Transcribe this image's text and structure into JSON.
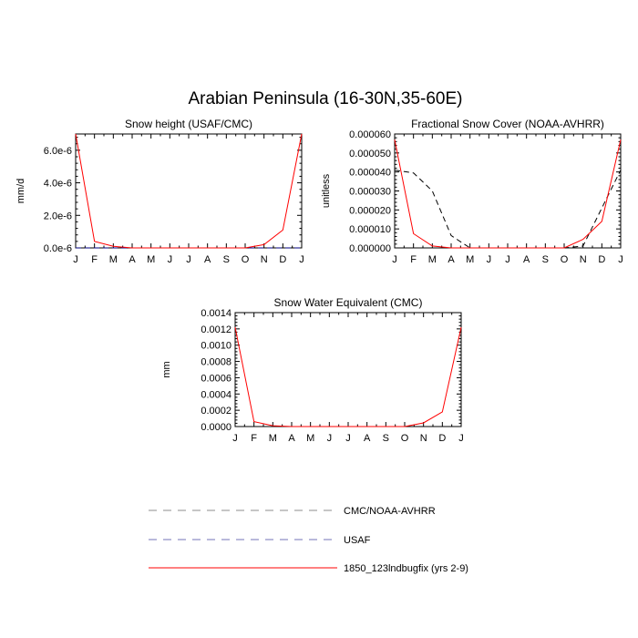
{
  "title": "Arabian Peninsula (16-30N,35-60E)",
  "legend": [
    {
      "label": "CMC/NOAA-AVHRR",
      "color": "#000000",
      "dash": "9,7",
      "opacity": 0.45
    },
    {
      "label": "USAF",
      "color": "#000080",
      "dash": "9,7",
      "opacity": 0.55
    },
    {
      "label": "1850_123lndbugfix (yrs 2-9)",
      "color": "#ff0000",
      "dash": "",
      "opacity": 1
    }
  ],
  "chart_data": [
    {
      "type": "line",
      "title": "Snow height (USAF/CMC)",
      "ylabel": "mm/d",
      "categories": [
        "J",
        "F",
        "M",
        "A",
        "M",
        "J",
        "J",
        "A",
        "S",
        "O",
        "N",
        "D",
        "J"
      ],
      "ylim": [
        0,
        7e-06
      ],
      "yticks": [
        0,
        2e-06,
        4e-06,
        6e-06
      ],
      "ytick_labels": [
        "0.0e-6",
        "2.0e-6",
        "4.0e-6",
        "6.0e-6"
      ],
      "series": [
        {
          "name": "1850_123lndbugfix (yrs 2-9)",
          "color": "#ff0000",
          "dash": "",
          "values": [
            7e-06,
            4e-07,
            1e-07,
            0,
            0,
            0,
            0,
            0,
            0,
            0,
            2e-07,
            1.1e-06,
            7e-06
          ]
        },
        {
          "name": "USAF",
          "color": "#000080",
          "dash": "6,4",
          "values": [
            0,
            0,
            0,
            0,
            0,
            0,
            0,
            0,
            0,
            0,
            0,
            0,
            0
          ]
        }
      ]
    },
    {
      "type": "line",
      "title": "Fractional Snow Cover (NOAA-AVHRR)",
      "ylabel": "unitless",
      "categories": [
        "J",
        "F",
        "M",
        "A",
        "M",
        "J",
        "J",
        "A",
        "S",
        "O",
        "N",
        "D",
        "J"
      ],
      "ylim": [
        0,
        6e-05
      ],
      "yticks": [
        0,
        1e-05,
        2e-05,
        3e-05,
        4e-05,
        5e-05,
        6e-05
      ],
      "ytick_labels": [
        "0.000000",
        "0.000010",
        "0.000020",
        "0.000030",
        "0.000040",
        "0.000050",
        "0.000060"
      ],
      "series": [
        {
          "name": "1850_123lndbugfix (yrs 2-9)",
          "color": "#ff0000",
          "dash": "",
          "values": [
            5.7e-05,
            7.5e-06,
            1e-06,
            0,
            0,
            0,
            0,
            0,
            0,
            0,
            4.5e-06,
            1.4e-05,
            5.7e-05
          ]
        },
        {
          "name": "CMC/NOAA-AVHRR",
          "color": "#000000",
          "dash": "6,4",
          "values": [
            4.1e-05,
            3.95e-05,
            3e-05,
            6.5e-06,
            0,
            0,
            0,
            0,
            0,
            0,
            1e-06,
            2.1e-05,
            4.1e-05
          ]
        }
      ]
    },
    {
      "type": "line",
      "title": "Snow Water Equivalent (CMC)",
      "ylabel": "mm",
      "categories": [
        "J",
        "F",
        "M",
        "A",
        "M",
        "J",
        "J",
        "A",
        "S",
        "O",
        "N",
        "D",
        "J"
      ],
      "ylim": [
        0,
        0.0014
      ],
      "yticks": [
        0,
        0.0002,
        0.0004,
        0.0006,
        0.0008,
        0.001,
        0.0012,
        0.0014
      ],
      "ytick_labels": [
        "0.0000",
        "0.0002",
        "0.0004",
        "0.0006",
        "0.0008",
        "0.0010",
        "0.0012",
        "0.0014"
      ],
      "series": [
        {
          "name": "1850_123lndbugfix (yrs 2-9)",
          "color": "#ff0000",
          "dash": "",
          "values": [
            0.00122,
            6e-05,
            1e-05,
            0,
            0,
            0,
            0,
            0,
            0,
            0,
            4.5e-05,
            0.00018,
            0.00122
          ]
        },
        {
          "name": "CMC/NOAA-AVHRR",
          "color": "#000000",
          "dash": "6,4",
          "values": [
            0,
            0,
            0,
            0,
            0,
            0,
            0,
            0,
            0,
            0,
            0,
            0,
            0
          ]
        }
      ]
    }
  ]
}
